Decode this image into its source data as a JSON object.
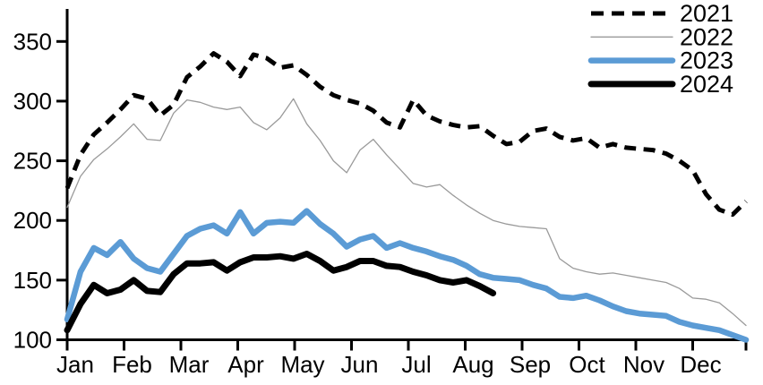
{
  "page": {
    "background": "#ffffff",
    "text_color": "#000000"
  },
  "chart_data": {
    "type": "line",
    "title": "",
    "frequency": "weekly",
    "x_axis": {
      "tick_labels": [
        "Jan",
        "Feb",
        "Mar",
        "Apr",
        "May",
        "Jun",
        "Jul",
        "Aug",
        "Sep",
        "Oct",
        "Nov",
        "Dec"
      ],
      "gridlines": false
    },
    "y_axis": {
      "min": 100,
      "max": 350,
      "ticks": [
        100,
        150,
        200,
        250,
        300,
        350
      ],
      "gridlines": false
    },
    "legend": {
      "position": "top-right"
    },
    "series": [
      {
        "name": "2021",
        "color": "#000000",
        "style": "dashed",
        "stroke_width": 5,
        "values": [
          227,
          255,
          272,
          282,
          293,
          305,
          302,
          288,
          297,
          320,
          329,
          340,
          333,
          321,
          339,
          336,
          328,
          330,
          322,
          312,
          305,
          301,
          298,
          292,
          282,
          278,
          301,
          288,
          283,
          280,
          278,
          279,
          271,
          264,
          266,
          275,
          277,
          270,
          267,
          269,
          261,
          264,
          261,
          260,
          259,
          256,
          250,
          242,
          222,
          209,
          205,
          216
        ]
      },
      {
        "name": "2022",
        "color": "#9a9a9a",
        "style": "solid",
        "stroke_width": 1.3,
        "values": [
          211,
          237,
          251,
          260,
          270,
          281,
          268,
          267,
          290,
          301,
          299,
          295,
          293,
          295,
          282,
          276,
          286,
          302,
          281,
          267,
          250,
          240,
          259,
          268,
          255,
          243,
          231,
          228,
          230,
          221,
          213,
          206,
          200,
          197,
          195,
          194,
          193,
          168,
          160,
          157,
          155,
          156,
          154,
          152,
          150,
          148,
          143,
          135,
          134,
          131,
          122,
          112
        ]
      },
      {
        "name": "2023",
        "color": "#5b9bd5",
        "style": "solid",
        "stroke_width": 6.5,
        "values": [
          117,
          157,
          177,
          171,
          182,
          168,
          160,
          157,
          172,
          187,
          193,
          196,
          189,
          207,
          189,
          198,
          199,
          198,
          208,
          197,
          189,
          178,
          184,
          187,
          177,
          181,
          177,
          174,
          170,
          167,
          162,
          155,
          152,
          151,
          150,
          146,
          143,
          136,
          135,
          137,
          133,
          128,
          124,
          122,
          121,
          120,
          115,
          112,
          110,
          108,
          104,
          100
        ]
      },
      {
        "name": "2024",
        "color": "#000000",
        "style": "solid",
        "stroke_width": 7,
        "values": [
          108,
          130,
          146,
          139,
          142,
          150,
          141,
          140,
          155,
          164,
          164,
          165,
          158,
          165,
          169,
          169,
          170,
          168,
          172,
          166,
          158,
          161,
          166,
          166,
          162,
          161,
          157,
          154,
          150,
          148,
          150,
          145,
          139
        ]
      }
    ]
  }
}
